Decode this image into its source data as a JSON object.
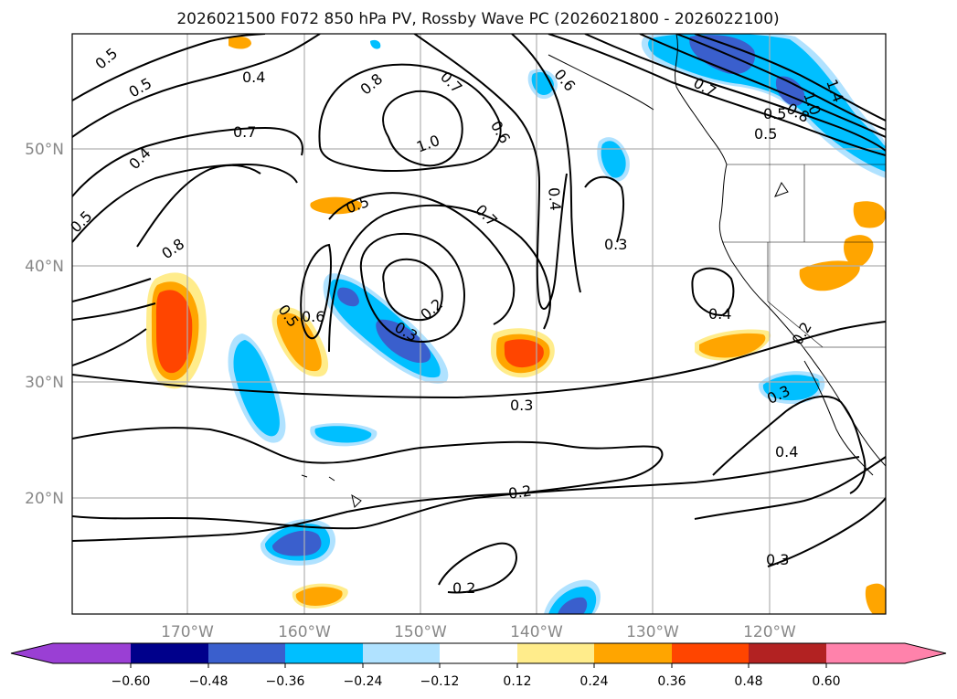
{
  "title": "2026021500 F072 850 hPa PV, Rossby Wave PC (2026021800 - 2026022100)",
  "lat_labels": [
    "50°N",
    "40°N",
    "30°N",
    "20°N"
  ],
  "lon_labels": [
    "170°W",
    "160°W",
    "150°W",
    "140°W",
    "130°W",
    "120°W"
  ],
  "contour_labels": [
    "0.5",
    "0.5",
    "0.4",
    "0.4",
    "0.5",
    "0.7",
    "0.8",
    "1.0",
    "0.8",
    "0.7",
    "0.6",
    "0.6",
    "0.7",
    "0.7",
    "0.5",
    "0.8",
    "0.5",
    "1.0",
    "1.4",
    "0.5",
    "0.4",
    "0.3",
    "0.2",
    "0.3",
    "0.6",
    "0.5",
    "0.4",
    "0.2",
    "0.3",
    "0.3",
    "0.4",
    "0.2",
    "0.3",
    "0.2"
  ],
  "colorbar": {
    "ticks": [
      "−0.60",
      "−0.48",
      "−0.36",
      "−0.24",
      "−0.12",
      "0.12",
      "0.24",
      "0.36",
      "0.48",
      "0.60"
    ],
    "colors": [
      "#9a3fd4",
      "#00008b",
      "#3a5fcd",
      "#00bfff",
      "#b0e2ff",
      "#ffffff",
      "#ffec8b",
      "#ffa500",
      "#ff4500",
      "#b22222",
      "#ff82ab"
    ]
  },
  "icons": [
    "colorbar-left-arrow",
    "colorbar-right-arrow"
  ]
}
